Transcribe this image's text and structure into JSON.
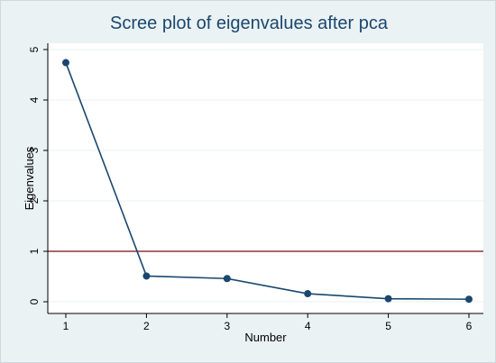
{
  "chart_data": {
    "type": "line",
    "title": "Scree plot of eigenvalues after pca",
    "xlabel": "Number",
    "ylabel": "Eigenvalues",
    "xlim": [
      1,
      6
    ],
    "ylim": [
      0,
      5
    ],
    "x_ticks": [
      "1",
      "2",
      "3",
      "4",
      "5",
      "6"
    ],
    "y_ticks": [
      "0",
      "1",
      "2",
      "3",
      "4",
      "5"
    ],
    "grid": true,
    "legend": "none",
    "series": [
      {
        "x": [
          1,
          2,
          3,
          4,
          5,
          6
        ],
        "values": [
          4.74,
          0.51,
          0.46,
          0.16,
          0.06,
          0.05
        ],
        "color": "#1a476f"
      }
    ],
    "reference_lines": [
      {
        "axis": "y",
        "value": 1,
        "color": "#90353b"
      }
    ]
  },
  "colors": {
    "background": "#eaf2f3",
    "plot_area": "#ffffff",
    "grid": "#eaf2f3",
    "series": "#1a476f",
    "reference_line": "#90353b"
  }
}
